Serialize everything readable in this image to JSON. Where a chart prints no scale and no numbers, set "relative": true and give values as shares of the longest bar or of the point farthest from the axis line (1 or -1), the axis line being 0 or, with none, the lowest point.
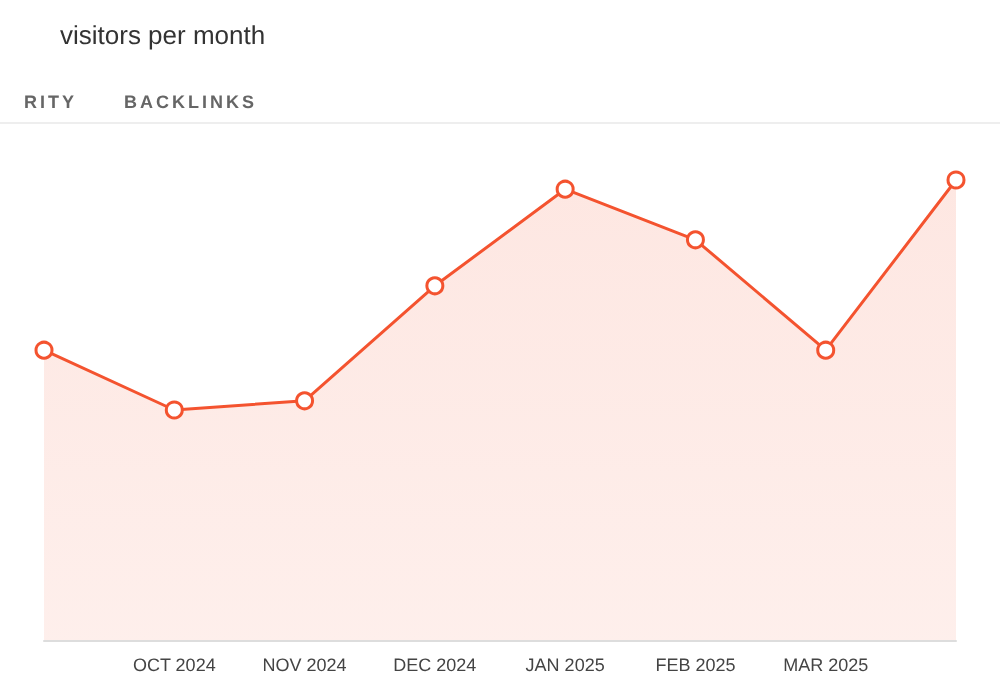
{
  "chart_data": {
    "type": "area",
    "title": "visitors per month",
    "annotations": [
      "RITY",
      "BACKLINKS"
    ],
    "categories": [
      null,
      "OCT 2024",
      "NOV 2024",
      "DEC 2024",
      "JAN 2025",
      "FEB 2025",
      "MAR 2025",
      null
    ],
    "series": [
      {
        "color": "#f4532f",
        "values": [
          0.63,
          0.5,
          0.52,
          0.77,
          0.98,
          0.87,
          0.63,
          1
        ]
      }
    ],
    "relative": true,
    "marker": "circle",
    "line_style": "solid"
  }
}
